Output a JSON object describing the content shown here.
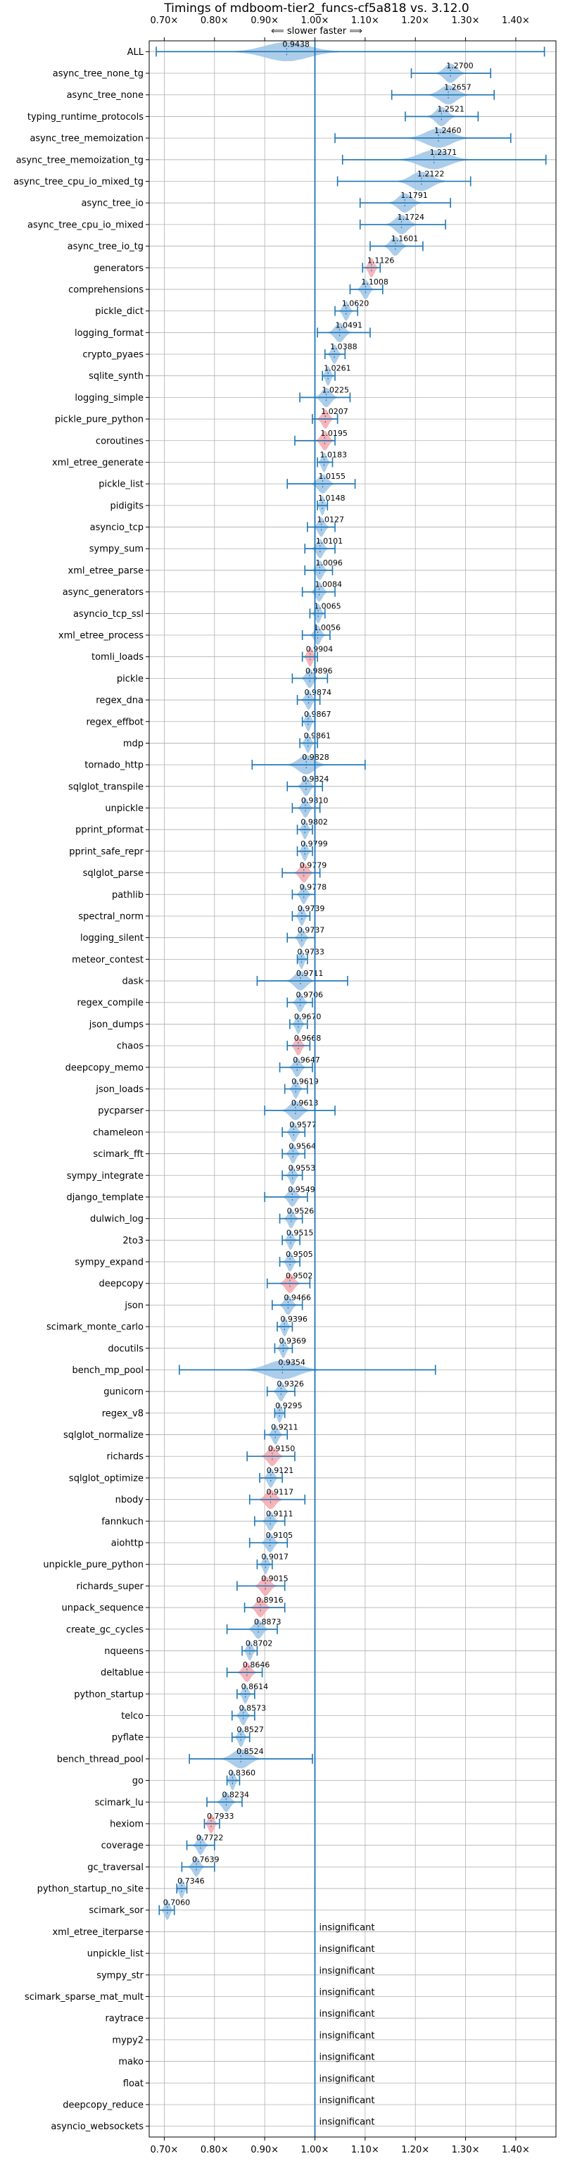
{
  "chart_data": {
    "type": "violin",
    "title": "Timings of mdboom-tier2_funcs-cf5a818 vs. 3.12.0",
    "direction_label": "⟸ slower   faster ⟹",
    "xlim": [
      0.67,
      1.48
    ],
    "x_ticks": [
      0.7,
      0.8,
      0.9,
      1.0,
      1.1,
      1.2,
      1.3,
      1.4
    ],
    "x_tick_labels": [
      "0.70×",
      "0.80×",
      "0.90×",
      "1.00×",
      "1.10×",
      "1.20×",
      "1.30×",
      "1.40×"
    ],
    "reference_x": 1.0,
    "colors": {
      "faster": "#9ec4e6",
      "slower": "#f4a7ad",
      "line": "#1f77b4",
      "grid": "#b0b0b0"
    },
    "insignificant_label": "insignificant",
    "benchmarks": [
      {
        "name": "ALL",
        "value": 0.9438,
        "label": "0.9438",
        "min": 0.684,
        "max": 1.457,
        "spread": 0.05,
        "color": "faster"
      },
      {
        "name": "async_tree_none_tg",
        "value": 1.27,
        "label": "1.2700",
        "min": 1.192,
        "max": 1.35,
        "spread": 0.05,
        "color": "faster"
      },
      {
        "name": "async_tree_none",
        "value": 1.2657,
        "label": "1.2657",
        "min": 1.153,
        "max": 1.357,
        "spread": 0.06,
        "color": "faster"
      },
      {
        "name": "typing_runtime_protocols",
        "value": 1.2521,
        "label": "1.2521",
        "min": 1.18,
        "max": 1.325,
        "spread": 0.05,
        "color": "faster"
      },
      {
        "name": "async_tree_memoization",
        "value": 1.246,
        "label": "1.2460",
        "min": 1.04,
        "max": 1.39,
        "spread": 0.06,
        "color": "faster"
      },
      {
        "name": "async_tree_memoization_tg",
        "value": 1.2371,
        "label": "1.2371",
        "min": 1.055,
        "max": 1.46,
        "spread": 0.06,
        "color": "faster"
      },
      {
        "name": "async_tree_cpu_io_mixed_tg",
        "value": 1.2122,
        "label": "1.2122",
        "min": 1.045,
        "max": 1.31,
        "spread": 0.06,
        "color": "faster"
      },
      {
        "name": "async_tree_io",
        "value": 1.1791,
        "label": "1.1791",
        "min": 1.09,
        "max": 1.27,
        "spread": 0.05,
        "color": "faster"
      },
      {
        "name": "async_tree_cpu_io_mixed",
        "value": 1.1724,
        "label": "1.1724",
        "min": 1.09,
        "max": 1.26,
        "spread": 0.05,
        "color": "faster"
      },
      {
        "name": "async_tree_io_tg",
        "value": 1.1601,
        "label": "1.1601",
        "min": 1.11,
        "max": 1.215,
        "spread": 0.05,
        "color": "faster"
      },
      {
        "name": "generators",
        "value": 1.1126,
        "label": "1.1126",
        "min": 1.095,
        "max": 1.13,
        "spread": 0.04,
        "color": "slower"
      },
      {
        "name": "comprehensions",
        "value": 1.1008,
        "label": "1.1008",
        "min": 1.07,
        "max": 1.135,
        "spread": 0.04,
        "color": "faster"
      },
      {
        "name": "pickle_dict",
        "value": 1.062,
        "label": "1.0620",
        "min": 1.04,
        "max": 1.085,
        "spread": 0.04,
        "color": "faster"
      },
      {
        "name": "logging_format",
        "value": 1.0491,
        "label": "1.0491",
        "min": 1.005,
        "max": 1.11,
        "spread": 0.05,
        "color": "faster"
      },
      {
        "name": "crypto_pyaes",
        "value": 1.0388,
        "label": "1.0388",
        "min": 1.02,
        "max": 1.06,
        "spread": 0.04,
        "color": "faster"
      },
      {
        "name": "sqlite_synth",
        "value": 1.0261,
        "label": "1.0261",
        "min": 1.015,
        "max": 1.04,
        "spread": 0.03,
        "color": "faster"
      },
      {
        "name": "logging_simple",
        "value": 1.0225,
        "label": "1.0225",
        "min": 0.97,
        "max": 1.07,
        "spread": 0.05,
        "color": "faster"
      },
      {
        "name": "pickle_pure_python",
        "value": 1.0207,
        "label": "1.0207",
        "min": 0.995,
        "max": 1.045,
        "spread": 0.05,
        "color": "slower"
      },
      {
        "name": "coroutines",
        "value": 1.0195,
        "label": "1.0195",
        "min": 0.96,
        "max": 1.04,
        "spread": 0.04,
        "color": "slower"
      },
      {
        "name": "xml_etree_generate",
        "value": 1.0183,
        "label": "1.0183",
        "min": 1.005,
        "max": 1.035,
        "spread": 0.03,
        "color": "faster"
      },
      {
        "name": "pickle_list",
        "value": 1.0155,
        "label": "1.0155",
        "min": 0.945,
        "max": 1.08,
        "spread": 0.04,
        "color": "faster"
      },
      {
        "name": "pidigits",
        "value": 1.0148,
        "label": "1.0148",
        "min": 1.005,
        "max": 1.025,
        "spread": 0.02,
        "color": "faster"
      },
      {
        "name": "asyncio_tcp",
        "value": 1.0127,
        "label": "1.0127",
        "min": 0.985,
        "max": 1.04,
        "spread": 0.04,
        "color": "faster"
      },
      {
        "name": "sympy_sum",
        "value": 1.0101,
        "label": "1.0101",
        "min": 0.98,
        "max": 1.04,
        "spread": 0.04,
        "color": "faster"
      },
      {
        "name": "xml_etree_parse",
        "value": 1.0096,
        "label": "1.0096",
        "min": 0.98,
        "max": 1.035,
        "spread": 0.04,
        "color": "faster"
      },
      {
        "name": "async_generators",
        "value": 1.0084,
        "label": "1.0084",
        "min": 0.975,
        "max": 1.04,
        "spread": 0.04,
        "color": "faster"
      },
      {
        "name": "asyncio_tcp_ssl",
        "value": 1.0065,
        "label": "1.0065",
        "min": 0.99,
        "max": 1.02,
        "spread": 0.03,
        "color": "faster"
      },
      {
        "name": "xml_etree_process",
        "value": 1.0056,
        "label": "1.0056",
        "min": 0.975,
        "max": 1.03,
        "spread": 0.04,
        "color": "faster"
      },
      {
        "name": "tomli_loads",
        "value": 0.9904,
        "label": "0.9904",
        "min": 0.975,
        "max": 1.005,
        "spread": 0.04,
        "color": "slower"
      },
      {
        "name": "pickle",
        "value": 0.9896,
        "label": "0.9896",
        "min": 0.955,
        "max": 1.025,
        "spread": 0.04,
        "color": "faster"
      },
      {
        "name": "regex_dna",
        "value": 0.9874,
        "label": "0.9874",
        "min": 0.965,
        "max": 1.01,
        "spread": 0.04,
        "color": "faster"
      },
      {
        "name": "regex_effbot",
        "value": 0.9867,
        "label": "0.9867",
        "min": 0.975,
        "max": 1.0,
        "spread": 0.03,
        "color": "faster"
      },
      {
        "name": "mdp",
        "value": 0.9861,
        "label": "0.9861",
        "min": 0.97,
        "max": 1.005,
        "spread": 0.03,
        "color": "faster"
      },
      {
        "name": "tornado_http",
        "value": 0.9828,
        "label": "0.9828",
        "min": 0.875,
        "max": 1.1,
        "spread": 0.05,
        "color": "faster"
      },
      {
        "name": "sqlglot_transpile",
        "value": 0.9824,
        "label": "0.9824",
        "min": 0.945,
        "max": 1.015,
        "spread": 0.04,
        "color": "faster"
      },
      {
        "name": "unpickle",
        "value": 0.981,
        "label": "0.9810",
        "min": 0.955,
        "max": 1.01,
        "spread": 0.04,
        "color": "faster"
      },
      {
        "name": "pprint_pformat",
        "value": 0.9802,
        "label": "0.9802",
        "min": 0.965,
        "max": 0.995,
        "spread": 0.03,
        "color": "faster"
      },
      {
        "name": "pprint_safe_repr",
        "value": 0.9799,
        "label": "0.9799",
        "min": 0.965,
        "max": 0.995,
        "spread": 0.03,
        "color": "faster"
      },
      {
        "name": "sqlglot_parse",
        "value": 0.9779,
        "label": "0.9779",
        "min": 0.935,
        "max": 1.01,
        "spread": 0.05,
        "color": "slower"
      },
      {
        "name": "pathlib",
        "value": 0.9778,
        "label": "0.9778",
        "min": 0.955,
        "max": 1.0,
        "spread": 0.04,
        "color": "faster"
      },
      {
        "name": "spectral_norm",
        "value": 0.9739,
        "label": "0.9739",
        "min": 0.955,
        "max": 0.99,
        "spread": 0.03,
        "color": "faster"
      },
      {
        "name": "logging_silent",
        "value": 0.9737,
        "label": "0.9737",
        "min": 0.945,
        "max": 1.0,
        "spread": 0.03,
        "color": "faster"
      },
      {
        "name": "meteor_contest",
        "value": 0.9733,
        "label": "0.9733",
        "min": 0.965,
        "max": 0.985,
        "spread": 0.02,
        "color": "faster"
      },
      {
        "name": "dask",
        "value": 0.9711,
        "label": "0.9711",
        "min": 0.885,
        "max": 1.065,
        "spread": 0.04,
        "color": "faster"
      },
      {
        "name": "regex_compile",
        "value": 0.9706,
        "label": "0.9706",
        "min": 0.945,
        "max": 0.995,
        "spread": 0.04,
        "color": "faster"
      },
      {
        "name": "json_dumps",
        "value": 0.967,
        "label": "0.9670",
        "min": 0.95,
        "max": 0.985,
        "spread": 0.03,
        "color": "faster"
      },
      {
        "name": "chaos",
        "value": 0.9668,
        "label": "0.9668",
        "min": 0.945,
        "max": 0.99,
        "spread": 0.04,
        "color": "slower"
      },
      {
        "name": "deepcopy_memo",
        "value": 0.9647,
        "label": "0.9647",
        "min": 0.93,
        "max": 0.995,
        "spread": 0.04,
        "color": "faster"
      },
      {
        "name": "json_loads",
        "value": 0.9619,
        "label": "0.9619",
        "min": 0.94,
        "max": 0.985,
        "spread": 0.03,
        "color": "faster"
      },
      {
        "name": "pycparser",
        "value": 0.9613,
        "label": "0.9613",
        "min": 0.9,
        "max": 1.04,
        "spread": 0.05,
        "color": "faster"
      },
      {
        "name": "chameleon",
        "value": 0.9577,
        "label": "0.9577",
        "min": 0.935,
        "max": 0.98,
        "spread": 0.04,
        "color": "faster"
      },
      {
        "name": "scimark_fft",
        "value": 0.9564,
        "label": "0.9564",
        "min": 0.935,
        "max": 0.98,
        "spread": 0.04,
        "color": "faster"
      },
      {
        "name": "sympy_integrate",
        "value": 0.9553,
        "label": "0.9553",
        "min": 0.935,
        "max": 0.975,
        "spread": 0.03,
        "color": "faster"
      },
      {
        "name": "django_template",
        "value": 0.9549,
        "label": "0.9549",
        "min": 0.9,
        "max": 0.985,
        "spread": 0.04,
        "color": "faster"
      },
      {
        "name": "dulwich_log",
        "value": 0.9526,
        "label": "0.9526",
        "min": 0.93,
        "max": 0.975,
        "spread": 0.04,
        "color": "faster"
      },
      {
        "name": "2to3",
        "value": 0.9515,
        "label": "0.9515",
        "min": 0.935,
        "max": 0.97,
        "spread": 0.03,
        "color": "faster"
      },
      {
        "name": "sympy_expand",
        "value": 0.9505,
        "label": "0.9505",
        "min": 0.93,
        "max": 0.97,
        "spread": 0.04,
        "color": "faster"
      },
      {
        "name": "deepcopy",
        "value": 0.9502,
        "label": "0.9502",
        "min": 0.905,
        "max": 0.99,
        "spread": 0.05,
        "color": "slower"
      },
      {
        "name": "json",
        "value": 0.9466,
        "label": "0.9466",
        "min": 0.915,
        "max": 0.975,
        "spread": 0.05,
        "color": "faster"
      },
      {
        "name": "scimark_monte_carlo",
        "value": 0.9396,
        "label": "0.9396",
        "min": 0.925,
        "max": 0.955,
        "spread": 0.03,
        "color": "faster"
      },
      {
        "name": "docutils",
        "value": 0.9369,
        "label": "0.9369",
        "min": 0.92,
        "max": 0.955,
        "spread": 0.03,
        "color": "faster"
      },
      {
        "name": "bench_mp_pool",
        "value": 0.9354,
        "label": "0.9354",
        "min": 0.73,
        "max": 1.24,
        "spread": 0.05,
        "color": "faster"
      },
      {
        "name": "gunicorn",
        "value": 0.9326,
        "label": "0.9326",
        "min": 0.905,
        "max": 0.96,
        "spread": 0.04,
        "color": "faster"
      },
      {
        "name": "regex_v8",
        "value": 0.9295,
        "label": "0.9295",
        "min": 0.92,
        "max": 0.94,
        "spread": 0.02,
        "color": "faster"
      },
      {
        "name": "sqlglot_normalize",
        "value": 0.9211,
        "label": "0.9211",
        "min": 0.9,
        "max": 0.945,
        "spread": 0.04,
        "color": "faster"
      },
      {
        "name": "richards",
        "value": 0.915,
        "label": "0.9150",
        "min": 0.865,
        "max": 0.96,
        "spread": 0.05,
        "color": "slower"
      },
      {
        "name": "sqlglot_optimize",
        "value": 0.9121,
        "label": "0.9121",
        "min": 0.89,
        "max": 0.935,
        "spread": 0.04,
        "color": "faster"
      },
      {
        "name": "nbody",
        "value": 0.9117,
        "label": "0.9117",
        "min": 0.87,
        "max": 0.98,
        "spread": 0.05,
        "color": "slower"
      },
      {
        "name": "fannkuch",
        "value": 0.9111,
        "label": "0.9111",
        "min": 0.88,
        "max": 0.94,
        "spread": 0.04,
        "color": "faster"
      },
      {
        "name": "aiohttp",
        "value": 0.9105,
        "label": "0.9105",
        "min": 0.87,
        "max": 0.945,
        "spread": 0.04,
        "color": "faster"
      },
      {
        "name": "unpickle_pure_python",
        "value": 0.9017,
        "label": "0.9017",
        "min": 0.885,
        "max": 0.915,
        "spread": 0.03,
        "color": "faster"
      },
      {
        "name": "richards_super",
        "value": 0.9015,
        "label": "0.9015",
        "min": 0.845,
        "max": 0.94,
        "spread": 0.05,
        "color": "slower"
      },
      {
        "name": "unpack_sequence",
        "value": 0.8916,
        "label": "0.8916",
        "min": 0.86,
        "max": 0.94,
        "spread": 0.05,
        "color": "slower"
      },
      {
        "name": "create_gc_cycles",
        "value": 0.8873,
        "label": "0.8873",
        "min": 0.825,
        "max": 0.925,
        "spread": 0.04,
        "color": "faster"
      },
      {
        "name": "nqueens",
        "value": 0.8702,
        "label": "0.8702",
        "min": 0.855,
        "max": 0.885,
        "spread": 0.03,
        "color": "faster"
      },
      {
        "name": "deltablue",
        "value": 0.8646,
        "label": "0.8646",
        "min": 0.825,
        "max": 0.895,
        "spread": 0.05,
        "color": "slower"
      },
      {
        "name": "python_startup",
        "value": 0.8614,
        "label": "0.8614",
        "min": 0.845,
        "max": 0.88,
        "spread": 0.03,
        "color": "faster"
      },
      {
        "name": "telco",
        "value": 0.8573,
        "label": "0.8573",
        "min": 0.835,
        "max": 0.88,
        "spread": 0.04,
        "color": "faster"
      },
      {
        "name": "pyflate",
        "value": 0.8527,
        "label": "0.8527",
        "min": 0.835,
        "max": 0.87,
        "spread": 0.03,
        "color": "faster"
      },
      {
        "name": "bench_thread_pool",
        "value": 0.8524,
        "label": "0.8524",
        "min": 0.75,
        "max": 0.995,
        "spread": 0.05,
        "color": "faster"
      },
      {
        "name": "go",
        "value": 0.836,
        "label": "0.8360",
        "min": 0.825,
        "max": 0.85,
        "spread": 0.03,
        "color": "faster"
      },
      {
        "name": "scimark_lu",
        "value": 0.8234,
        "label": "0.8234",
        "min": 0.785,
        "max": 0.855,
        "spread": 0.05,
        "color": "faster"
      },
      {
        "name": "hexiom",
        "value": 0.7933,
        "label": "0.7933",
        "min": 0.78,
        "max": 0.81,
        "spread": 0.04,
        "color": "slower"
      },
      {
        "name": "coverage",
        "value": 0.7722,
        "label": "0.7722",
        "min": 0.745,
        "max": 0.8,
        "spread": 0.04,
        "color": "faster"
      },
      {
        "name": "gc_traversal",
        "value": 0.7639,
        "label": "0.7639",
        "min": 0.735,
        "max": 0.8,
        "spread": 0.04,
        "color": "faster"
      },
      {
        "name": "python_startup_no_site",
        "value": 0.7346,
        "label": "0.7346",
        "min": 0.725,
        "max": 0.745,
        "spread": 0.03,
        "color": "faster"
      },
      {
        "name": "scimark_sor",
        "value": 0.706,
        "label": "0.7060",
        "min": 0.69,
        "max": 0.72,
        "spread": 0.03,
        "color": "faster"
      },
      {
        "name": "xml_etree_iterparse",
        "insignificant": true
      },
      {
        "name": "unpickle_list",
        "insignificant": true
      },
      {
        "name": "sympy_str",
        "insignificant": true
      },
      {
        "name": "scimark_sparse_mat_mult",
        "insignificant": true
      },
      {
        "name": "raytrace",
        "insignificant": true
      },
      {
        "name": "mypy2",
        "insignificant": true
      },
      {
        "name": "mako",
        "insignificant": true
      },
      {
        "name": "float",
        "insignificant": true
      },
      {
        "name": "deepcopy_reduce",
        "insignificant": true
      },
      {
        "name": "asyncio_websockets",
        "insignificant": true
      }
    ]
  }
}
